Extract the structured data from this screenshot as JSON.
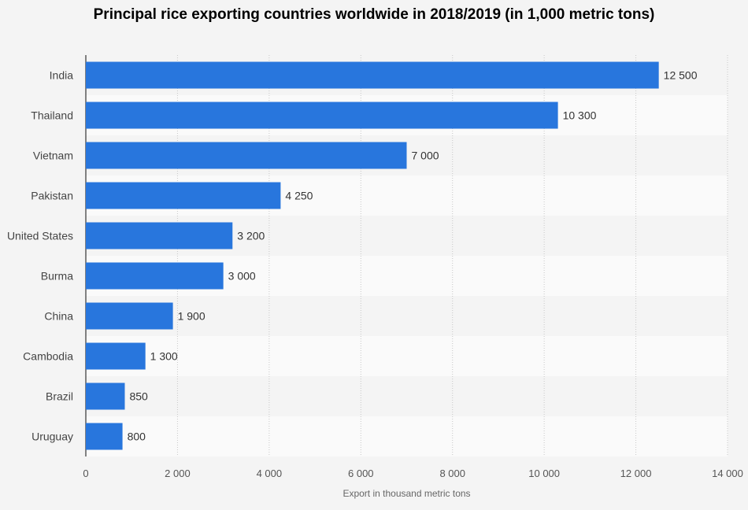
{
  "title": "Principal rice exporting countries worldwide in 2018/2019 (in 1,000 metric tons)",
  "chart_data": {
    "type": "bar",
    "orientation": "horizontal",
    "title": "Principal rice exporting countries worldwide in 2018/2019 (in 1,000 metric tons)",
    "categories": [
      "India",
      "Thailand",
      "Vietnam",
      "Pakistan",
      "United States",
      "Burma",
      "China",
      "Cambodia",
      "Brazil",
      "Uruguay"
    ],
    "values": [
      12500,
      10300,
      7000,
      4250,
      3200,
      3000,
      1900,
      1300,
      850,
      800
    ],
    "value_labels": [
      "12 500",
      "10 300",
      "7 000",
      "4 250",
      "3 200",
      "3 000",
      "1 900",
      "1 300",
      "850",
      "800"
    ],
    "xlabel": "Export in thousand metric tons",
    "ylabel": "",
    "xlim": [
      0,
      14000
    ],
    "x_ticks": [
      0,
      2000,
      4000,
      6000,
      8000,
      10000,
      12000,
      14000
    ],
    "x_tick_labels": [
      "0",
      "2 000",
      "4 000",
      "6 000",
      "8 000",
      "10 000",
      "12 000",
      "14 000"
    ],
    "grid": true,
    "bar_color": "#2876dd"
  }
}
